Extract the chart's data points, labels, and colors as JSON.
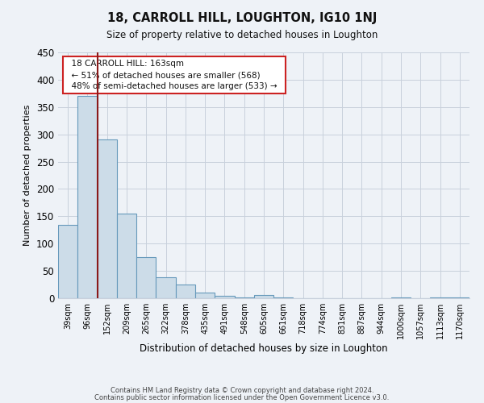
{
  "title": "18, CARROLL HILL, LOUGHTON, IG10 1NJ",
  "subtitle": "Size of property relative to detached houses in Loughton",
  "xlabel": "Distribution of detached houses by size in Loughton",
  "ylabel": "Number of detached properties",
  "footer_line1": "Contains HM Land Registry data © Crown copyright and database right 2024.",
  "footer_line2": "Contains public sector information licensed under the Open Government Licence v3.0.",
  "bin_labels": [
    "39sqm",
    "96sqm",
    "152sqm",
    "209sqm",
    "265sqm",
    "322sqm",
    "378sqm",
    "435sqm",
    "491sqm",
    "548sqm",
    "605sqm",
    "661sqm",
    "718sqm",
    "774sqm",
    "831sqm",
    "887sqm",
    "944sqm",
    "1000sqm",
    "1057sqm",
    "1113sqm",
    "1170sqm"
  ],
  "bar_values": [
    135,
    370,
    290,
    155,
    75,
    38,
    25,
    10,
    5,
    2,
    6,
    1,
    0,
    0,
    0,
    0,
    0,
    2,
    0,
    2,
    1
  ],
  "bar_color": "#ccdce8",
  "bar_edge_color": "#6699bb",
  "ylim": [
    0,
    450
  ],
  "yticks": [
    0,
    50,
    100,
    150,
    200,
    250,
    300,
    350,
    400,
    450
  ],
  "property_line_color": "#8b1a1a",
  "annotation_title": "18 CARROLL HILL: 163sqm",
  "annotation_line1": "← 51% of detached houses are smaller (568)",
  "annotation_line2": "48% of semi-detached houses are larger (533) →",
  "background_color": "#eef2f7",
  "grid_color": "#c8d0dc"
}
